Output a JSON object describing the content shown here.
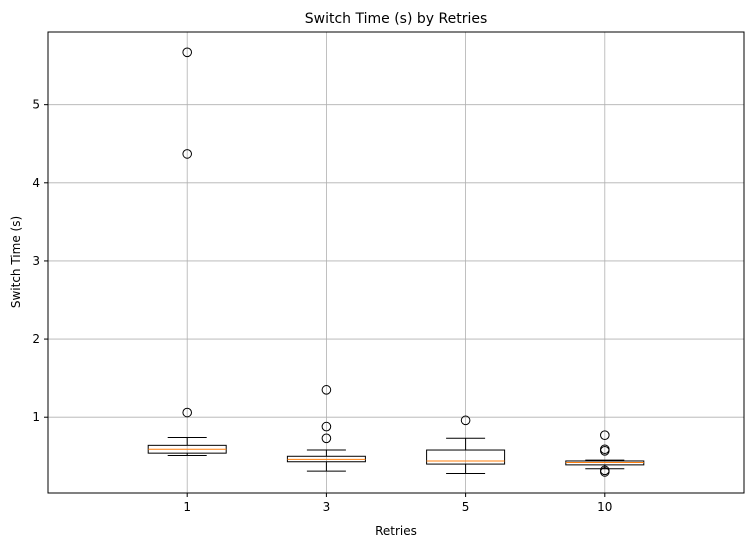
{
  "chart_data": {
    "type": "boxplot",
    "title": "Switch Time (s) by Retries",
    "xlabel": "Retries",
    "ylabel": "Switch Time (s)",
    "categories": [
      "1",
      "3",
      "5",
      "10"
    ],
    "ylim": [
      0.03,
      5.93
    ],
    "yticks": [
      1,
      2,
      3,
      4,
      5
    ],
    "grid": true,
    "boxes": [
      {
        "category": "1",
        "whisker_low": 0.51,
        "q1": 0.54,
        "median": 0.59,
        "q3": 0.64,
        "whisker_high": 0.74,
        "outliers": [
          1.06,
          4.37,
          5.67
        ]
      },
      {
        "category": "3",
        "whisker_low": 0.31,
        "q1": 0.43,
        "median": 0.46,
        "q3": 0.5,
        "whisker_high": 0.58,
        "outliers": [
          0.73,
          0.88,
          1.35
        ]
      },
      {
        "category": "5",
        "whisker_low": 0.28,
        "q1": 0.4,
        "median": 0.44,
        "q3": 0.58,
        "whisker_high": 0.73,
        "outliers": [
          0.96
        ]
      },
      {
        "category": "10",
        "whisker_low": 0.34,
        "q1": 0.39,
        "median": 0.42,
        "q3": 0.44,
        "whisker_high": 0.45,
        "outliers": [
          0.3,
          0.32,
          0.57,
          0.59,
          0.77
        ]
      }
    ],
    "colors": {
      "box": "#000000",
      "median": "#ff7f0e",
      "grid": "#b0b0b0"
    }
  }
}
